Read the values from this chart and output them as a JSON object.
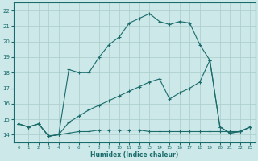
{
  "xlabel": "Humidex (Indice chaleur)",
  "bg_color": "#cce8e8",
  "grid_color": "#aacccc",
  "line_color": "#1a6b6b",
  "xlim": [
    -0.5,
    23.5
  ],
  "ylim": [
    13.5,
    22.5
  ],
  "xticks": [
    0,
    1,
    2,
    3,
    4,
    5,
    6,
    7,
    8,
    9,
    10,
    11,
    12,
    13,
    14,
    15,
    16,
    17,
    18,
    19,
    20,
    21,
    22,
    23
  ],
  "yticks": [
    14,
    15,
    16,
    17,
    18,
    19,
    20,
    21,
    22
  ],
  "line1_x": [
    0,
    1,
    2,
    3,
    4,
    5,
    6,
    7,
    8,
    9,
    10,
    11,
    12,
    13,
    14,
    15,
    16,
    17,
    18,
    19,
    20,
    21,
    22,
    23
  ],
  "line1_y": [
    14.7,
    14.5,
    14.7,
    13.9,
    14.0,
    18.2,
    18.0,
    18.0,
    19.0,
    19.8,
    20.3,
    21.2,
    21.5,
    21.8,
    21.3,
    21.1,
    21.3,
    21.2,
    19.8,
    18.8,
    14.5,
    14.1,
    14.2,
    14.5
  ],
  "line2_x": [
    0,
    1,
    2,
    3,
    4,
    5,
    6,
    7,
    8,
    9,
    10,
    11,
    12,
    13,
    14,
    15,
    16,
    17,
    18,
    19,
    20,
    21,
    22,
    23
  ],
  "line2_y": [
    14.7,
    14.5,
    14.7,
    13.9,
    14.0,
    14.8,
    15.2,
    15.6,
    15.9,
    16.2,
    16.5,
    16.8,
    17.1,
    17.4,
    17.6,
    16.3,
    16.7,
    17.0,
    17.4,
    18.8,
    14.5,
    14.1,
    14.2,
    14.5
  ],
  "line3_x": [
    0,
    1,
    2,
    3,
    4,
    5,
    6,
    7,
    8,
    9,
    10,
    11,
    12,
    13,
    14,
    15,
    16,
    17,
    18,
    19,
    20,
    21,
    22,
    23
  ],
  "line3_y": [
    14.7,
    14.5,
    14.7,
    13.9,
    14.0,
    14.1,
    14.2,
    14.2,
    14.3,
    14.3,
    14.3,
    14.3,
    14.3,
    14.2,
    14.2,
    14.2,
    14.2,
    14.2,
    14.2,
    14.2,
    14.2,
    14.2,
    14.2,
    14.5
  ]
}
